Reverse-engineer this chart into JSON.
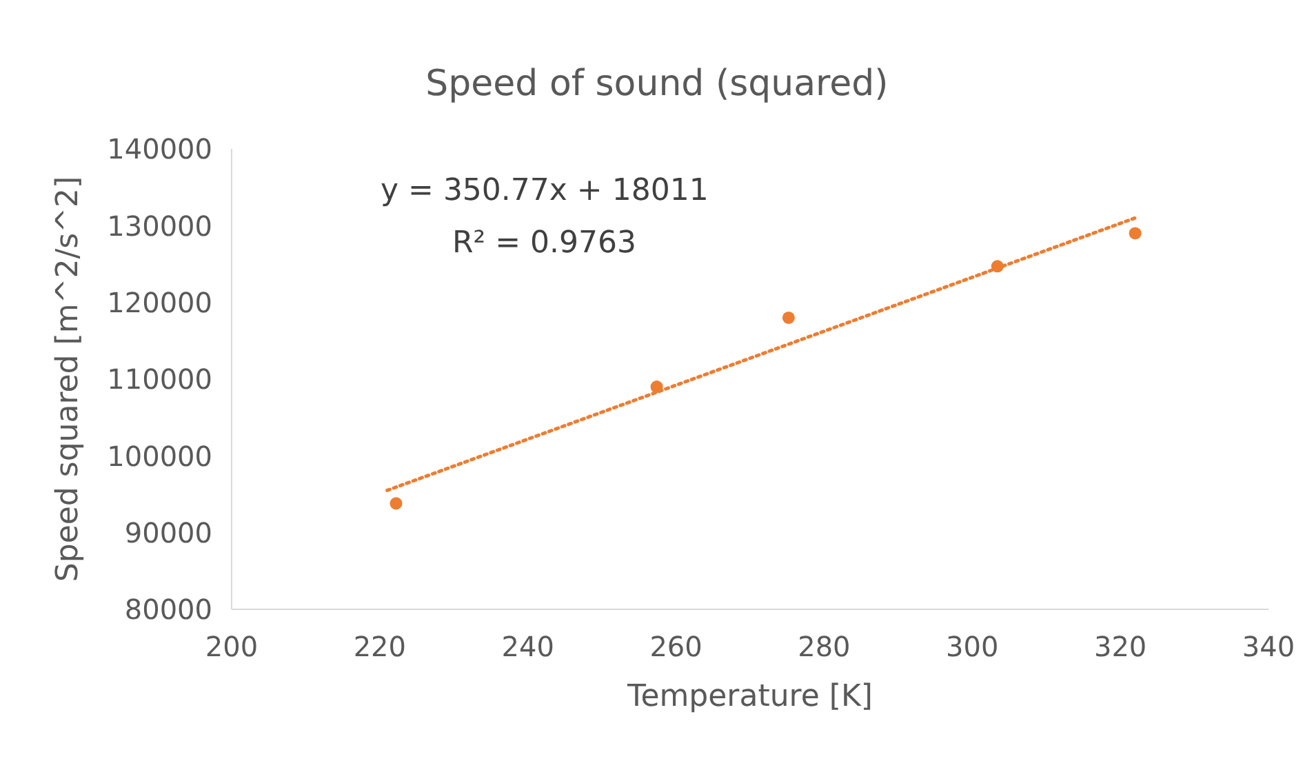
{
  "chart_data": {
    "type": "scatter",
    "title": "Speed of sound (squared)",
    "xlabel": "Temperature [K]",
    "ylabel": "Speed squared [m^2/s^2]",
    "x": [
      222.2,
      257.4,
      275.2,
      303.4,
      322
    ],
    "series": [
      {
        "color": "#ed7d31",
        "values": [
          93800,
          109000,
          118000,
          124700,
          129000
        ],
        "marker": "circle"
      },
      {
        "type": "line",
        "color": "#ed7d31",
        "x": [
          221,
          322
        ],
        "values": [
          95500,
          131000
        ],
        "line_style": "dotted",
        "marker": "none"
      }
    ],
    "xlim": [
      200,
      340
    ],
    "xticks": [
      200,
      220,
      240,
      260,
      280,
      300,
      320,
      340
    ],
    "ylim": [
      80000,
      140000
    ],
    "yticks": [
      80000,
      90000,
      100000,
      110000,
      120000,
      130000,
      140000
    ],
    "grid": false,
    "annotations": [
      "y = 350.77x + 18011",
      "R² = 0.9763"
    ]
  }
}
